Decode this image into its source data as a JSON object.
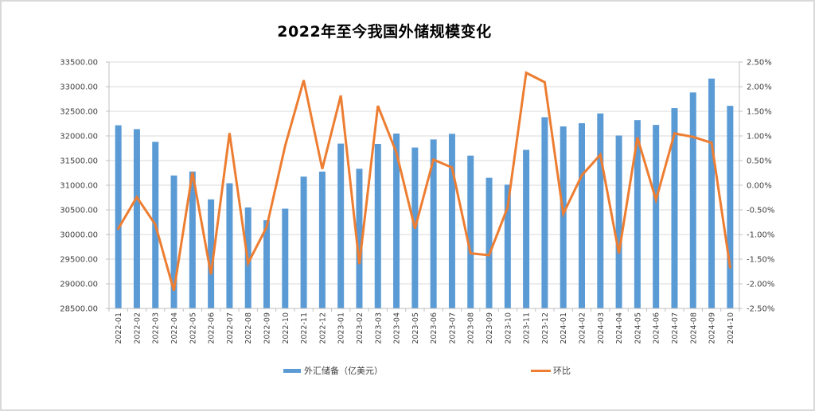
{
  "title": "2022年至今我国外储规模变化",
  "legend": {
    "bar_label": "外汇储备（亿美元）",
    "line_label": "环比"
  },
  "colors": {
    "bar": "#5b9bd5",
    "line": "#ed7d31",
    "grid": "#d9d9d9",
    "axis": "#bfbfbf"
  },
  "chart_data": {
    "type": "bar+line",
    "title": "2022年至今我国外储规模变化",
    "xlabel": "",
    "ylabel": "",
    "categories": [
      "2022-01",
      "2022-02",
      "2022-03",
      "2022-04",
      "2022-05",
      "2022-06",
      "2022-07",
      "2022-08",
      "2022-09",
      "2022-10",
      "2022-11",
      "2022-12",
      "2023-01",
      "2023-02",
      "2023-03",
      "2023-04",
      "2023-05",
      "2023-06",
      "2023-07",
      "2023-08",
      "2023-09",
      "2023-10",
      "2023-11",
      "2023-12",
      "2024-01",
      "2024-02",
      "2024-03",
      "2024-04",
      "2024-05",
      "2024-06",
      "2024-07",
      "2024-08",
      "2024-09",
      "2024-10"
    ],
    "series": [
      {
        "name": "外汇储备（亿美元）",
        "type": "bar",
        "axis": "left",
        "values": [
          32216,
          32138,
          31880,
          31198,
          31278,
          30713,
          31040,
          30549,
          30290,
          30524,
          31175,
          31277,
          31845,
          31334,
          31839,
          32048,
          31765,
          31929,
          32043,
          31601,
          31151,
          31012,
          31718,
          32380,
          32193,
          32258,
          32457,
          32009,
          32320,
          32224,
          32564,
          32882,
          33164,
          32611
        ]
      },
      {
        "name": "环比",
        "type": "line",
        "axis": "right",
        "unit": "%",
        "values": [
          -0.88,
          -0.24,
          -0.8,
          -2.14,
          0.26,
          -1.81,
          1.06,
          -1.58,
          -0.85,
          0.8,
          2.13,
          0.33,
          1.82,
          -1.6,
          1.61,
          0.66,
          -0.88,
          0.52,
          0.36,
          -1.38,
          -1.42,
          -0.45,
          2.28,
          2.09,
          -0.58,
          0.2,
          0.62,
          -1.38,
          0.97,
          -0.3,
          1.05,
          0.98,
          0.86,
          -1.67
        ]
      }
    ],
    "y_left": {
      "ylim": [
        28500,
        33500
      ],
      "ticks": [
        "33500.00",
        "33000.00",
        "32500.00",
        "32000.00",
        "31500.00",
        "31000.00",
        "30500.00",
        "30000.00",
        "29500.00",
        "29000.00",
        "28500.00"
      ]
    },
    "y_right": {
      "ylim": [
        -2.5,
        2.5
      ],
      "ticks": [
        "2.50%",
        "2.00%",
        "1.50%",
        "1.00%",
        "0.50%",
        "0.00%",
        "-0.50%",
        "-1.00%",
        "-1.50%",
        "-2.00%",
        "-2.50%"
      ]
    },
    "grid": true,
    "legend_position": "bottom"
  }
}
